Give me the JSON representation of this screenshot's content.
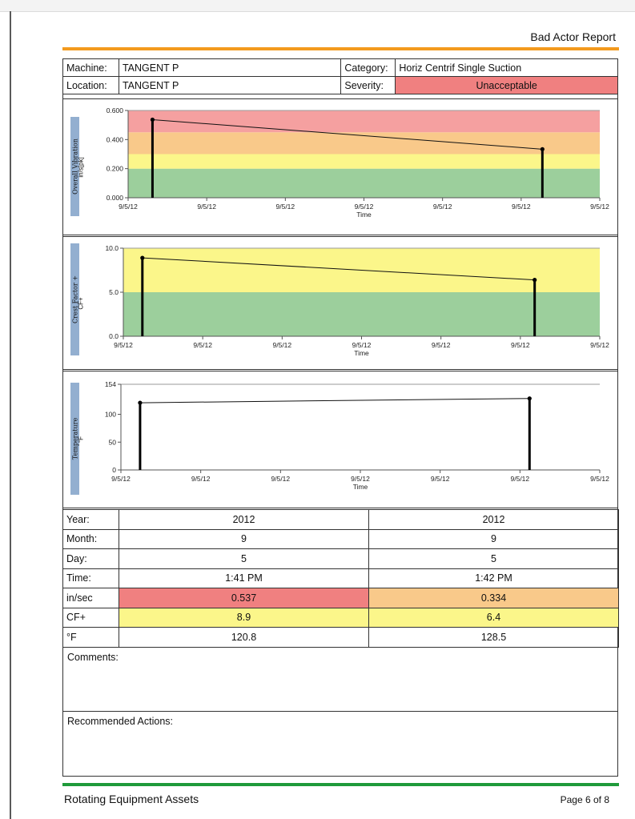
{
  "report_title": "Bad Actor Report",
  "header": {
    "machine_label": "Machine:",
    "machine_value": "TANGENT P",
    "location_label": "Location:",
    "location_value": "TANGENT P",
    "category_label": "Category:",
    "category_value": "Horiz Centrif Single Suction",
    "severity_label": "Severity:",
    "severity_value": "Unacceptable",
    "severity_color": "#f08080"
  },
  "chart_data": [
    {
      "type": "line",
      "ylabel": "Overall Vibration",
      "unit": "in/s[pk]",
      "xlabel": "Time",
      "x_ticks": [
        "9/5/12",
        "9/5/12",
        "9/5/12",
        "9/5/12",
        "9/5/12",
        "9/5/12",
        "9/5/12"
      ],
      "y_ticks": [
        "0.000",
        "0.200",
        "0.400",
        "0.600"
      ],
      "ylim": [
        0,
        0.6
      ],
      "bands": [
        {
          "from": 0,
          "to": 0.2,
          "color": "#9ccf9c"
        },
        {
          "from": 0.2,
          "to": 0.3,
          "color": "#fbf68a"
        },
        {
          "from": 0.3,
          "to": 0.45,
          "color": "#f9c98a"
        },
        {
          "from": 0.45,
          "to": 0.6,
          "color": "#f5a0a0"
        }
      ],
      "x": [
        0.31,
        5.27
      ],
      "values": [
        0.537,
        0.334
      ]
    },
    {
      "type": "line",
      "ylabel": "Crest Factor +",
      "unit": "CF+",
      "xlabel": "Time",
      "x_ticks": [
        "9/5/12",
        "9/5/12",
        "9/5/12",
        "9/5/12",
        "9/5/12",
        "9/5/12",
        "9/5/12"
      ],
      "y_ticks": [
        "0.0",
        "5.0",
        "10.0"
      ],
      "ylim": [
        0,
        10
      ],
      "bands": [
        {
          "from": 0,
          "to": 5,
          "color": "#9ccf9c"
        },
        {
          "from": 5,
          "to": 10,
          "color": "#fbf68a"
        }
      ],
      "x": [
        0.24,
        5.18
      ],
      "values": [
        8.9,
        6.4
      ]
    },
    {
      "type": "line",
      "ylabel": "Temperature",
      "unit": "°F",
      "xlabel": "Time",
      "x_ticks": [
        "9/5/12",
        "9/5/12",
        "9/5/12",
        "9/5/12",
        "9/5/12",
        "9/5/12",
        "9/5/12"
      ],
      "y_ticks": [
        "0",
        "50",
        "100",
        "154"
      ],
      "ylim": [
        0,
        154
      ],
      "bands": [],
      "x": [
        0.24,
        5.12
      ],
      "values": [
        120.8,
        128.5
      ]
    }
  ],
  "table": {
    "rows": [
      {
        "label": "Year:",
        "values": [
          "2012",
          "2012"
        ],
        "colors": [
          "",
          ""
        ]
      },
      {
        "label": "Month:",
        "values": [
          "9",
          "9"
        ],
        "colors": [
          "",
          ""
        ]
      },
      {
        "label": "Day:",
        "values": [
          "5",
          "5"
        ],
        "colors": [
          "",
          ""
        ]
      },
      {
        "label": "Time:",
        "values": [
          "1:41 PM",
          "1:42 PM"
        ],
        "colors": [
          "",
          ""
        ]
      },
      {
        "label": "in/sec",
        "values": [
          "0.537",
          "0.334"
        ],
        "colors": [
          "#f08080",
          "#f9c98a"
        ]
      },
      {
        "label": "CF+",
        "values": [
          "8.9",
          "6.4"
        ],
        "colors": [
          "#fbf68a",
          "#fbf68a"
        ]
      },
      {
        "label": "°F",
        "values": [
          "120.8",
          "128.5"
        ],
        "colors": [
          "",
          ""
        ]
      }
    ]
  },
  "comments_label": "Comments:",
  "actions_label": "Recommended Actions:",
  "footer": {
    "left": "Rotating Equipment Assets",
    "right": "Page 6 of 8"
  }
}
